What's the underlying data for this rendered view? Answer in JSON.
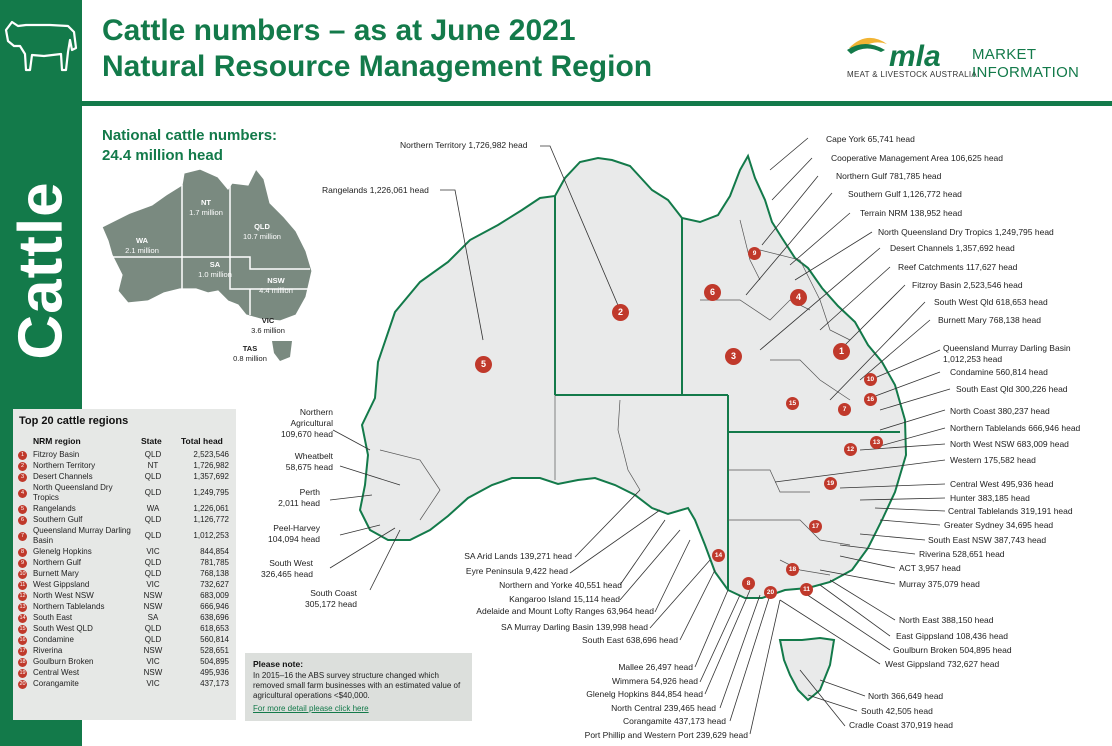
{
  "sidebar": {
    "title": "Cattle",
    "icon": "cow-icon"
  },
  "header": {
    "title_line1": "Cattle numbers – as at June 2021",
    "title_line2": "Natural Resource Management Region",
    "logo_text": "mla",
    "logo_sub": "MEAT & LIVESTOCK AUSTRALIA",
    "market_line1": "MARKET",
    "market_line2": "INFORMATION"
  },
  "national": {
    "line1": "National cattle numbers:",
    "line2": "24.4 million head"
  },
  "states": [
    {
      "code": "WA",
      "value": "2.1 million"
    },
    {
      "code": "NT",
      "value": "1.7 million"
    },
    {
      "code": "QLD",
      "value": "10.7 million"
    },
    {
      "code": "SA",
      "value": "1.0 million"
    },
    {
      "code": "NSW",
      "value": "4.4 million"
    },
    {
      "code": "VIC",
      "value": "3.6 million"
    },
    {
      "code": "TAS",
      "value": "0.8 million"
    }
  ],
  "top20": {
    "title": "Top 20 cattle regions",
    "headers": {
      "region": "NRM region",
      "state": "State",
      "total": "Total head"
    },
    "rows": [
      {
        "n": "1",
        "region": "Fitzroy Basin",
        "state": "QLD",
        "total": "2,523,546"
      },
      {
        "n": "2",
        "region": "Northern Territory",
        "state": "NT",
        "total": "1,726,982"
      },
      {
        "n": "3",
        "region": "Desert Channels",
        "state": "QLD",
        "total": "1,357,692"
      },
      {
        "n": "4",
        "region": "North Queensland Dry Tropics",
        "state": "QLD",
        "total": "1,249,795"
      },
      {
        "n": "5",
        "region": "Rangelands",
        "state": "WA",
        "total": "1,226,061"
      },
      {
        "n": "6",
        "region": "Southern Gulf",
        "state": "QLD",
        "total": "1,126,772"
      },
      {
        "n": "7",
        "region": "Queensland Murray Darling Basin",
        "state": "QLD",
        "total": "1,012,253"
      },
      {
        "n": "8",
        "region": "Glenelg Hopkins",
        "state": "VIC",
        "total": "844,854"
      },
      {
        "n": "9",
        "region": "Northern Gulf",
        "state": "QLD",
        "total": "781,785"
      },
      {
        "n": "10",
        "region": "Burnett Mary",
        "state": "QLD",
        "total": "768,138"
      },
      {
        "n": "11",
        "region": "West Gippsland",
        "state": "VIC",
        "total": "732,627"
      },
      {
        "n": "12",
        "region": "North West NSW",
        "state": "NSW",
        "total": "683,009"
      },
      {
        "n": "13",
        "region": "Northern Tablelands",
        "state": "NSW",
        "total": "666,946"
      },
      {
        "n": "14",
        "region": "South East",
        "state": "SA",
        "total": "638,696"
      },
      {
        "n": "15",
        "region": "South West QLD",
        "state": "QLD",
        "total": "618,653"
      },
      {
        "n": "16",
        "region": "Condamine",
        "state": "QLD",
        "total": "560,814"
      },
      {
        "n": "17",
        "region": "Riverina",
        "state": "NSW",
        "total": "528,651"
      },
      {
        "n": "18",
        "region": "Goulburn Broken",
        "state": "VIC",
        "total": "504,895"
      },
      {
        "n": "19",
        "region": "Central West",
        "state": "NSW",
        "total": "495,936"
      },
      {
        "n": "20",
        "region": "Corangamite",
        "state": "VIC",
        "total": "437,173"
      }
    ]
  },
  "note": {
    "title": "Please note:",
    "text": "In 2015–16 the ABS survey structure changed which removed small farm businesses with an estimated value of agricultural operations <$40,000.",
    "link": "For more detail please click here"
  },
  "map_labels": {
    "northern_territory": "Northern Territory 1,726,982 head",
    "rangelands": "Rangelands 1,226,061 head",
    "northern_agricultural": "Northern\nAgricultural\n109,670 head",
    "wheatbelt": "Wheatbelt\n58,675 head",
    "perth": "Perth\n2,011 head",
    "peel_harvey": "Peel-Harvey\n104,094 head",
    "south_west": "South West\n326,465 head",
    "south_coast": "South Coast\n305,172 head",
    "sa_arid_lands": "SA Arid Lands 139,271 head",
    "eyre_peninsula": "Eyre Peninsula 9,422 head",
    "northern_yorke": "Northern and Yorke 40,551 head",
    "kangaroo_island": "Kangaroo Island 15,114 head",
    "adelaide_mt_lofty": "Adelaide and Mount Lofty Ranges 63,964 head",
    "sa_murray_darling": "SA Murray Darling Basin 139,998 head",
    "south_east": "South East 638,696 head",
    "mallee": "Mallee 26,497 head",
    "wimmera": "Wimmera 54,926 head",
    "glenelg_hopkins": "Glenelg Hopkins 844,854 head",
    "north_central": "North Central 239,465 head",
    "corangamite": "Corangamite 437,173 head",
    "port_phillip": "Port Phillip and Western Port 239,629 head",
    "cape_york": "Cape York 65,741 head",
    "cooperative_mgmt": "Cooperative Management Area 106,625 head",
    "northern_gulf": "Northern Gulf 781,785 head",
    "southern_gulf": "Southern Gulf 1,126,772 head",
    "terrain_nrm": "Terrain NRM 138,952 head",
    "nq_dry_tropics": "North Queensland Dry Tropics 1,249,795 head",
    "desert_channels": "Desert Channels 1,357,692 head",
    "reef_catchments": "Reef Catchments 117,627 head",
    "fitzroy_basin": "Fitzroy Basin 2,523,546 head",
    "south_west_qld": "South West Qld 618,653 head",
    "burnett_mary": "Burnett Mary 768,138 head",
    "qmdb": "Queensland Murray Darling Basin\n1,012,253 head",
    "condamine": "Condamine 560,814 head",
    "south_east_qld": "South East Qld 300,226 head",
    "north_coast": "North Coast 380,237 head",
    "northern_tablelands": "Northern Tablelands 666,946 head",
    "north_west_nsw": "North West NSW 683,009 head",
    "western": "Western 175,582 head",
    "central_west": "Central West 495,936 head",
    "hunter": "Hunter 383,185 head",
    "central_tablelands": "Central Tablelands 319,191 head",
    "greater_sydney": "Greater Sydney 34,695 head",
    "south_east_nsw": "South East NSW 387,743 head",
    "riverina": "Riverina 528,651 head",
    "act": "ACT 3,957 head",
    "murray": "Murray 375,079 head",
    "north_east": "North East 388,150 head",
    "east_gippsland": "East Gippsland 108,436 head",
    "goulburn_broken": "Goulburn Broken 504,895 head",
    "west_gippsland": "West Gippsland 732,627 head",
    "north_tas": "North 366,649 head",
    "south_tas": "South 42,505 head",
    "cradle_coast": "Cradle Coast 370,919 head"
  },
  "colors": {
    "brand_green": "#137a4a",
    "marker_red": "#c0392b",
    "land": "#e9eaea"
  }
}
